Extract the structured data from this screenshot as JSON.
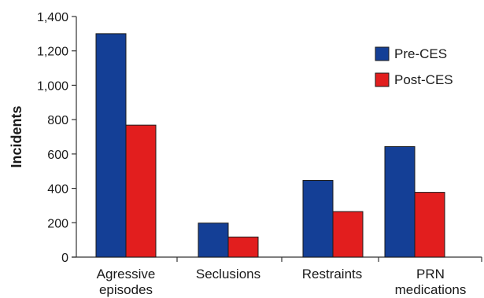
{
  "chart_data": {
    "type": "bar",
    "ylabel": "Incidents",
    "ylim": [
      0,
      1400
    ],
    "y_ticks": [
      0,
      200,
      400,
      600,
      800,
      1000,
      1200,
      1400
    ],
    "y_tick_labels": [
      "0",
      "200",
      "400",
      "600",
      "800",
      "1,000",
      "1,200",
      "1,400"
    ],
    "categories": [
      [
        "Agressive",
        "episodes"
      ],
      [
        "Seclusions"
      ],
      [
        "Restraints"
      ],
      [
        "PRN",
        "medications"
      ]
    ],
    "series": [
      {
        "name": "Pre-CES",
        "color": "#143f96",
        "values": [
          1300,
          198,
          446,
          643
        ]
      },
      {
        "name": "Post-CES",
        "color": "#e21e1e",
        "values": [
          768,
          117,
          265,
          377
        ]
      }
    ],
    "grid": false,
    "legend_position": "top-right"
  }
}
